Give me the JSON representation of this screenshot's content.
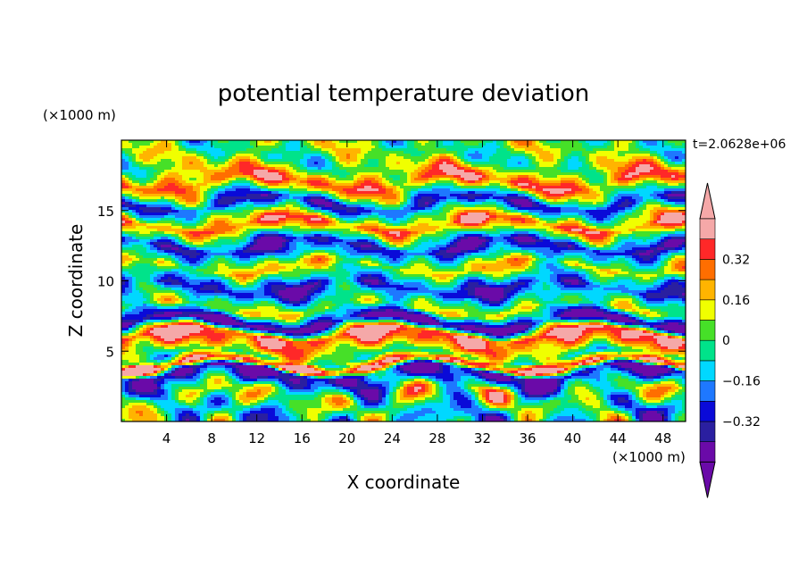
{
  "chart_data": {
    "type": "heatmap",
    "title": "potential temperature deviation",
    "xlabel": "X coordinate",
    "ylabel": "Z coordinate",
    "x_unit_label": "(×1000 m)",
    "y_unit_label": "(×1000 m)",
    "time_label": "t=2.0628e+06",
    "xlim": [
      0,
      50
    ],
    "ylim": [
      0,
      20
    ],
    "x_ticks": [
      4,
      8,
      12,
      16,
      20,
      24,
      28,
      32,
      36,
      40,
      44,
      48
    ],
    "y_ticks": [
      5,
      10,
      15
    ],
    "x_tick_labels": [
      "4",
      "8",
      "12",
      "16",
      "20",
      "24",
      "28",
      "32",
      "36",
      "40",
      "44",
      "48"
    ],
    "y_tick_labels": [
      "5",
      "10",
      "15"
    ],
    "colorbar": {
      "levels": [
        -0.48,
        -0.4,
        -0.32,
        -0.24,
        -0.16,
        -0.08,
        0,
        0.08,
        0.16,
        0.24,
        0.32,
        0.4
      ],
      "labels": [
        "-0.32",
        "-0.16",
        "0",
        "0.16",
        "0.32"
      ],
      "label_values": [
        -0.32,
        -0.16,
        0,
        0.16,
        0.32
      ],
      "colors": [
        "#6a0aa8",
        "#2a1fa0",
        "#0a0ad8",
        "#1e78ff",
        "#00d8ff",
        "#00e38a",
        "#46e028",
        "#f0ff00",
        "#ffb400",
        "#ff6e00",
        "#ff2828",
        "#f5a8a8"
      ],
      "extend": "both"
    },
    "bands_note": "",
    "bands": [
      {
        "z": 18.5,
        "v": 0.02
      },
      {
        "z": 17.0,
        "v": 0.3
      },
      {
        "z": 15.5,
        "v": -0.3
      },
      {
        "z": 14.0,
        "v": 0.35
      },
      {
        "z": 12.5,
        "v": -0.4
      },
      {
        "z": 11.0,
        "v": 0.2
      },
      {
        "z": 9.5,
        "v": -0.35
      },
      {
        "z": 8.0,
        "v": 0.1
      },
      {
        "z": 7.0,
        "v": -0.45
      },
      {
        "z": 6.2,
        "v": 0.42
      },
      {
        "z": 5.5,
        "v": 0.25
      },
      {
        "z": 4.6,
        "v": -0.05
      },
      {
        "z": 4.0,
        "v": 0.45
      },
      {
        "z": 3.5,
        "v": -0.4
      },
      {
        "z": 2.0,
        "v": 0.05
      },
      {
        "z": 0.5,
        "v": -0.1
      }
    ]
  }
}
